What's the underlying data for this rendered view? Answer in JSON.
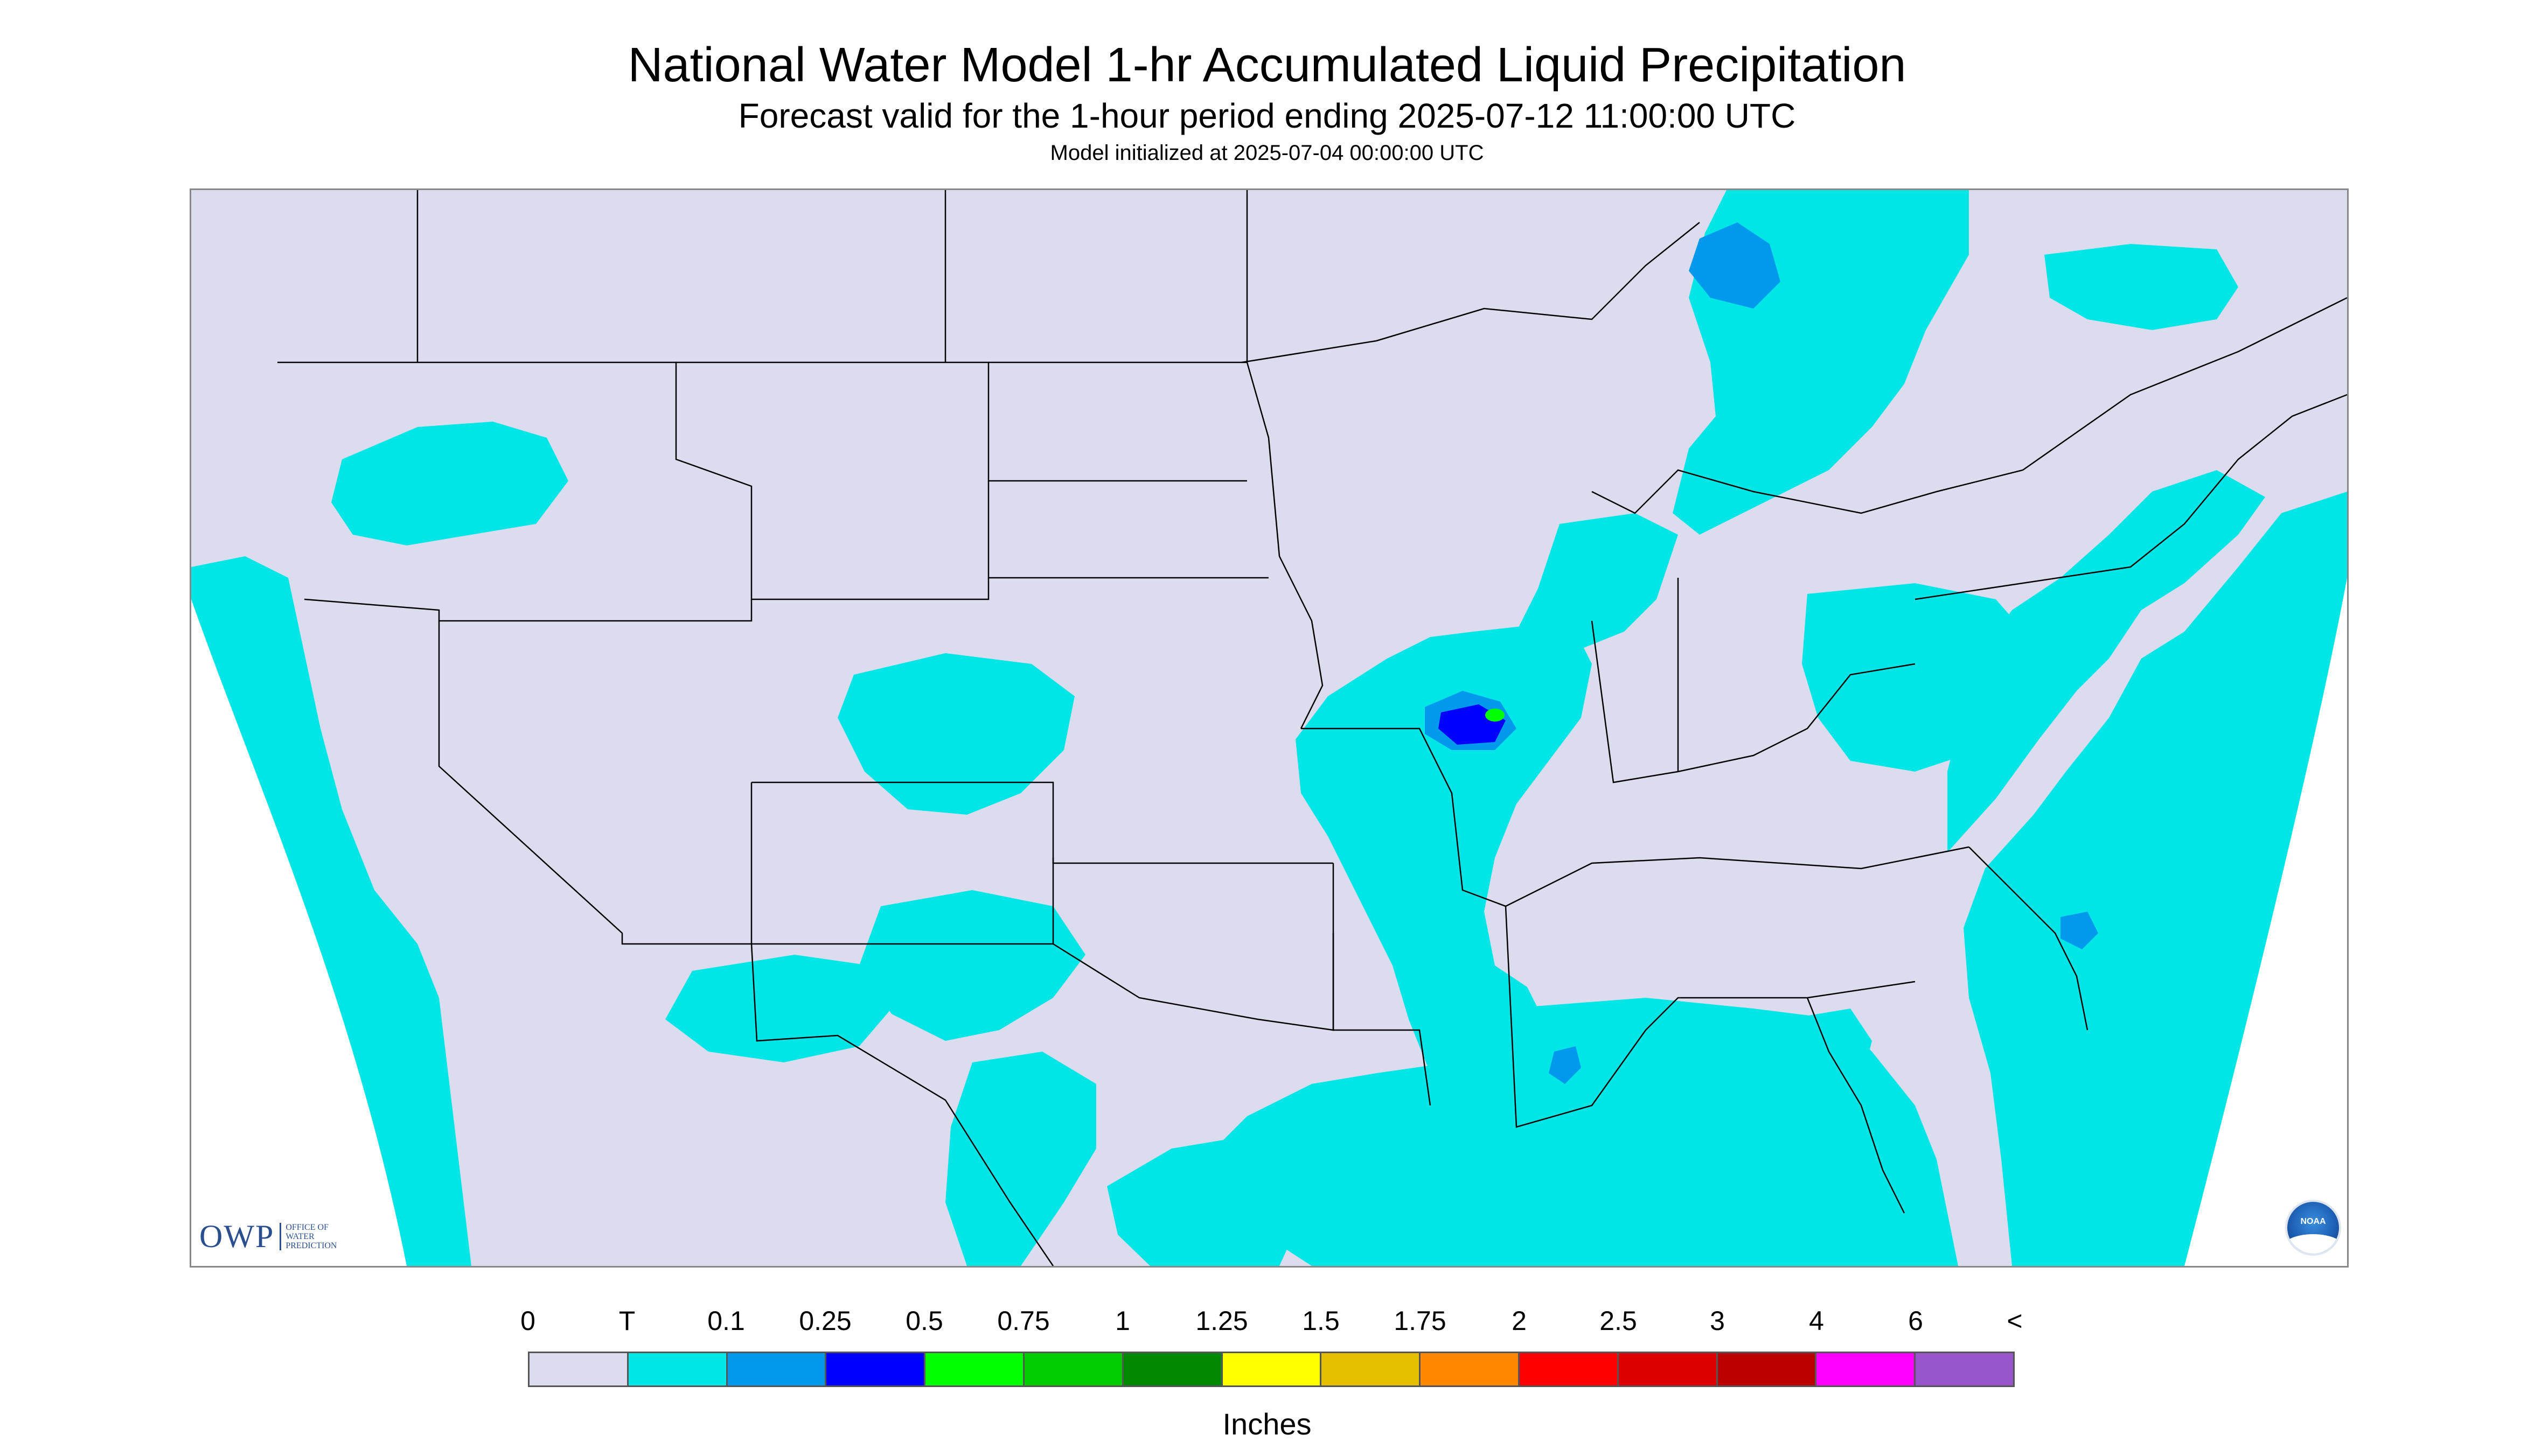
{
  "title": "National Water Model 1-hr Accumulated Liquid Precipitation",
  "subtitle": "Forecast valid for the 1-hour period ending 2025-07-12 11:00:00 UTC",
  "init_text": "Model initialized at 2025-07-04 00:00:00 UTC",
  "logo": {
    "owp_text": "OWP",
    "owp_subtext": "OFFICE OF\nWATER\nPREDICTION",
    "noaa_text": "NOAA"
  },
  "map": {
    "region": "Contiguous United States",
    "colors": {
      "no_data_outside_domain": "#ffffff",
      "zero_precip": "#dcdcef",
      "boundaries": "#000000"
    }
  },
  "legend": {
    "units": "Inches",
    "labels": [
      "0",
      "T",
      "0.1",
      "0.25",
      "0.5",
      "0.75",
      "1",
      "1.25",
      "1.5",
      "1.75",
      "2",
      "2.5",
      "3",
      "4",
      "6",
      "<"
    ],
    "colors": [
      "#dcdcef",
      "#00e5e5",
      "#0099ee",
      "#0000ff",
      "#00ff00",
      "#00cc00",
      "#008800",
      "#ffff00",
      "#e5be00",
      "#ff8800",
      "#ff0000",
      "#dd0000",
      "#bb0000",
      "#ff00ff",
      "#9955cc"
    ]
  }
}
